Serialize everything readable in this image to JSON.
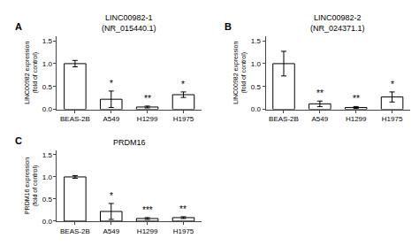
{
  "chart_data": [
    {
      "type": "bar",
      "title": "LINC00982-1\n(NR_015440.1)",
      "ylabel": "LINC00982 expression\n(fold of control)",
      "categories": [
        "BEAS-2B",
        "A549",
        "H1299",
        "H1975"
      ],
      "values": [
        1.0,
        0.22,
        0.05,
        0.32
      ],
      "errors": [
        0.07,
        0.18,
        0.02,
        0.06
      ],
      "annotations": [
        {
          "text": "A"
        },
        {
          "category": "A549",
          "text": "*"
        },
        {
          "category": "H1299",
          "text": "**"
        },
        {
          "category": "H1975",
          "text": "*"
        }
      ],
      "ylim": [
        0,
        1.6
      ],
      "yticks": [
        {
          "value": 0,
          "label": "0.0"
        },
        0.5,
        {
          "value": 1,
          "label": "1.0"
        },
        1.5
      ],
      "color": "#ffffff",
      "grid": false
    },
    {
      "type": "bar",
      "title": "LINC00982-2\n(NR_024371.1)",
      "ylabel": "LINC00982 expression\n(fold of control)",
      "categories": [
        "BEAS-2B",
        "A549",
        "H1299",
        "H1975"
      ],
      "values": [
        1.0,
        0.12,
        0.04,
        0.27
      ],
      "errors": [
        0.27,
        0.06,
        0.02,
        0.11
      ],
      "annotations": [
        {
          "text": "B"
        },
        {
          "category": "A549",
          "text": "**"
        },
        {
          "category": "H1299",
          "text": "**"
        },
        {
          "category": "H1975",
          "text": "*"
        }
      ],
      "ylim": [
        0,
        1.6
      ],
      "yticks": [
        {
          "value": 0,
          "label": "0.0"
        },
        0.5,
        {
          "value": 1,
          "label": "1.0"
        },
        1.5
      ],
      "color": "#ffffff",
      "grid": false
    },
    {
      "type": "bar",
      "title": "PRDM16",
      "ylabel": "PRDM16 expression\n(fold of control)",
      "categories": [
        "BEAS-2B",
        "A549",
        "H1299",
        "H1975"
      ],
      "values": [
        1.0,
        0.22,
        0.06,
        0.08
      ],
      "errors": [
        0.03,
        0.18,
        0.02,
        0.02
      ],
      "annotations": [
        {
          "text": "C"
        },
        {
          "category": "A549",
          "text": "*"
        },
        {
          "category": "H1299",
          "text": "***"
        },
        {
          "category": "H1975",
          "text": "**"
        }
      ],
      "ylim": [
        0,
        1.6
      ],
      "yticks": [
        {
          "value": 0,
          "label": "0.0"
        },
        0.5,
        {
          "value": 1,
          "label": "1.0"
        },
        1.5
      ],
      "color": "#ffffff",
      "grid": false
    }
  ]
}
